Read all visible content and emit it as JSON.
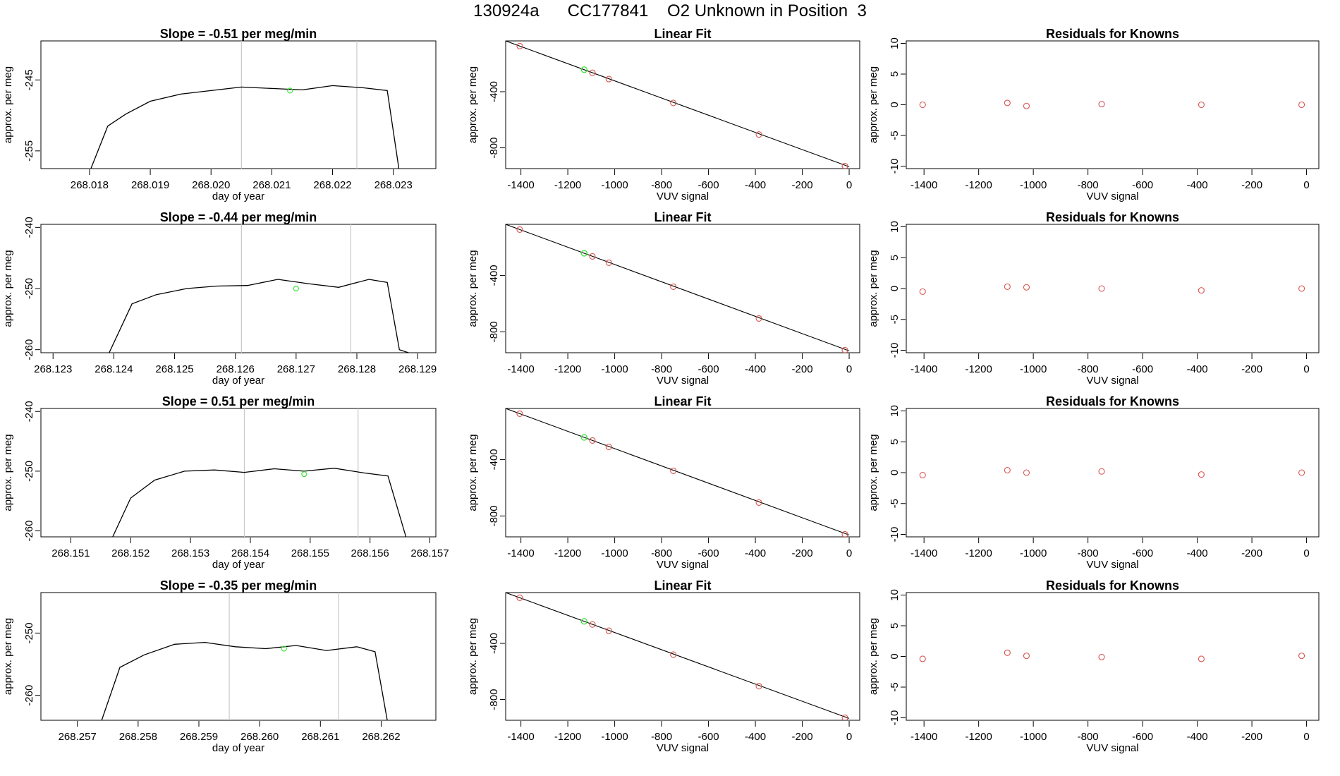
{
  "page": {
    "title": "130924a      CC177841    O2 Unknown in Position  3"
  },
  "chart_data": [
    {
      "type": "line",
      "panel": "time-series",
      "row": 1,
      "title": "Slope =  -0.51  per meg/min",
      "xlabel": "day of year",
      "ylabel": "approx. per meg",
      "xlim": [
        268.0172,
        268.0237
      ],
      "ylim": [
        -257.5,
        -239.5
      ],
      "xticks": [
        268.018,
        268.019,
        268.02,
        268.021,
        268.022,
        268.023
      ],
      "xtick_labels": [
        "268.018",
        "268.019",
        "268.020",
        "268.021",
        "268.022",
        "268.023"
      ],
      "yticks": [
        -245,
        -255
      ],
      "ytick_labels": [
        "-245",
        "-255"
      ],
      "vlines": [
        268.0205,
        268.0224
      ],
      "marker": {
        "x": 268.0213,
        "y": -246.5
      },
      "series": [
        {
          "name": "signal",
          "x": [
            268.018,
            268.0183,
            268.0186,
            268.019,
            268.0195,
            268.02,
            268.0205,
            268.021,
            268.0215,
            268.022,
            268.0225,
            268.0229,
            268.0231
          ],
          "y": [
            -258.0,
            -251.5,
            -249.8,
            -248.0,
            -247.0,
            -246.5,
            -246.0,
            -246.2,
            -246.4,
            -245.8,
            -246.1,
            -246.5,
            -258.0
          ]
        }
      ]
    },
    {
      "type": "line",
      "panel": "time-series",
      "row": 2,
      "title": "Slope =  -0.44  per meg/min",
      "xlabel": "day of year",
      "ylabel": "approx. per meg",
      "xlim": [
        268.1228,
        268.1293
      ],
      "ylim": [
        -260.5,
        -239.5
      ],
      "xticks": [
        268.123,
        268.124,
        268.125,
        268.126,
        268.127,
        268.128,
        268.129
      ],
      "xtick_labels": [
        "268.123",
        "268.124",
        "268.125",
        "268.126",
        "268.127",
        "268.128",
        "268.129"
      ],
      "yticks": [
        -240,
        -250,
        -260
      ],
      "ytick_labels": [
        "-240",
        "-250",
        "-260"
      ],
      "vlines": [
        268.1261,
        268.1279
      ],
      "marker": {
        "x": 268.127,
        "y": -250.0
      },
      "series": [
        {
          "name": "signal",
          "x": [
            268.1239,
            268.1243,
            268.1247,
            268.1252,
            268.1257,
            268.1262,
            268.1267,
            268.1272,
            268.1277,
            268.1282,
            268.1285,
            268.1287,
            268.129
          ],
          "y": [
            -261.0,
            -252.5,
            -251.0,
            -250.0,
            -249.6,
            -249.5,
            -248.5,
            -249.2,
            -249.8,
            -248.5,
            -249.0,
            -260.0,
            -261.0
          ]
        }
      ]
    },
    {
      "type": "line",
      "panel": "time-series",
      "row": 3,
      "title": "Slope =  0.51  per meg/min",
      "xlabel": "day of year",
      "ylabel": "approx. per meg",
      "xlim": [
        268.1505,
        268.1571
      ],
      "ylim": [
        -261.0,
        -239.5
      ],
      "xticks": [
        268.151,
        268.152,
        268.153,
        268.154,
        268.155,
        268.156,
        268.157
      ],
      "xtick_labels": [
        "268.151",
        "268.152",
        "268.153",
        "268.154",
        "268.155",
        "268.156",
        "268.157"
      ],
      "yticks": [
        -240,
        -250,
        -260
      ],
      "ytick_labels": [
        "-240",
        "-250",
        "-260"
      ],
      "vlines": [
        268.1539,
        268.1558
      ],
      "marker": {
        "x": 268.1549,
        "y": -250.5
      },
      "series": [
        {
          "name": "signal",
          "x": [
            268.1517,
            268.152,
            268.1524,
            268.1529,
            268.1534,
            268.1539,
            268.1544,
            268.1549,
            268.1554,
            268.1559,
            268.1563,
            268.1566
          ],
          "y": [
            -261.0,
            -254.5,
            -251.5,
            -250.0,
            -249.8,
            -250.2,
            -249.6,
            -250.0,
            -249.5,
            -250.3,
            -250.8,
            -261.0
          ]
        }
      ]
    },
    {
      "type": "line",
      "panel": "time-series",
      "row": 4,
      "title": "Slope =  -0.35  per meg/min",
      "xlabel": "day of year",
      "ylabel": "approx. per meg",
      "xlim": [
        268.2564,
        268.2629
      ],
      "ylim": [
        -264.0,
        -243.5
      ],
      "xticks": [
        268.257,
        268.258,
        268.259,
        268.26,
        268.261,
        268.262
      ],
      "xtick_labels": [
        "268.257",
        "268.258",
        "268.259",
        "268.260",
        "268.261",
        "268.262"
      ],
      "yticks": [
        -250,
        -260
      ],
      "ytick_labels": [
        "-250",
        "-260"
      ],
      "vlines": [
        268.2595,
        268.2613
      ],
      "marker": {
        "x": 268.2604,
        "y": -252.5
      },
      "series": [
        {
          "name": "signal",
          "x": [
            268.2574,
            268.2577,
            268.2581,
            268.2586,
            268.2591,
            268.2596,
            268.2601,
            268.2606,
            268.2611,
            268.2616,
            268.2619,
            268.2621
          ],
          "y": [
            -264.0,
            -255.5,
            -253.5,
            -251.8,
            -251.5,
            -252.2,
            -252.5,
            -252.0,
            -252.8,
            -252.2,
            -253.0,
            -264.0
          ]
        }
      ]
    },
    {
      "type": "scatter",
      "panel": "linear-fit",
      "row": 1,
      "title": "Linear Fit",
      "xlabel": "VUV signal",
      "ylabel": "approx. per meg",
      "xlim": [
        -1465,
        45
      ],
      "ylim": [
        -948,
        -38
      ],
      "xticks": [
        -1400,
        -1200,
        -1000,
        -800,
        -600,
        -400,
        -200,
        0
      ],
      "xtick_labels": [
        "-1400",
        "-1200",
        "-1000",
        "-800",
        "-600",
        "-400",
        "-200",
        "0"
      ],
      "yticks": [
        -400,
        -800
      ],
      "ytick_labels": [
        "-400",
        "-800"
      ],
      "fit_line": {
        "x": [
          -1465,
          0
        ],
        "y": [
          -38,
          -935
        ]
      },
      "points": {
        "x": [
          -1405,
          -1095,
          -1025,
          -750,
          -385,
          -18
        ],
        "y": [
          -75,
          -265,
          -310,
          -480,
          -705,
          -930
        ]
      },
      "unknown": {
        "x": [
          -1130
        ],
        "y": [
          -243
        ]
      }
    },
    {
      "type": "scatter",
      "panel": "linear-fit",
      "row": 2,
      "title": "Linear Fit",
      "xlabel": "VUV signal",
      "ylabel": "approx. per meg",
      "xlim": [
        -1465,
        45
      ],
      "ylim": [
        -948,
        -38
      ],
      "xticks": [
        -1400,
        -1200,
        -1000,
        -800,
        -600,
        -400,
        -200,
        0
      ],
      "xtick_labels": [
        "-1400",
        "-1200",
        "-1000",
        "-800",
        "-600",
        "-400",
        "-200",
        "0"
      ],
      "yticks": [
        -400,
        -800
      ],
      "ytick_labels": [
        "-400",
        "-800"
      ],
      "fit_line": {
        "x": [
          -1465,
          0
        ],
        "y": [
          -38,
          -935
        ]
      },
      "points": {
        "x": [
          -1405,
          -1095,
          -1025,
          -750,
          -385,
          -18
        ],
        "y": [
          -75,
          -265,
          -310,
          -480,
          -705,
          -930
        ]
      },
      "unknown": {
        "x": [
          -1130
        ],
        "y": [
          -243
        ]
      }
    },
    {
      "type": "scatter",
      "panel": "linear-fit",
      "row": 3,
      "title": "Linear Fit",
      "xlabel": "VUV signal",
      "ylabel": "approx. per meg",
      "xlim": [
        -1465,
        45
      ],
      "ylim": [
        -948,
        -38
      ],
      "xticks": [
        -1400,
        -1200,
        -1000,
        -800,
        -600,
        -400,
        -200,
        0
      ],
      "xtick_labels": [
        "-1400",
        "-1200",
        "-1000",
        "-800",
        "-600",
        "-400",
        "-200",
        "0"
      ],
      "yticks": [
        -400,
        -800
      ],
      "ytick_labels": [
        "-400",
        "-800"
      ],
      "fit_line": {
        "x": [
          -1465,
          0
        ],
        "y": [
          -38,
          -935
        ]
      },
      "points": {
        "x": [
          -1405,
          -1095,
          -1025,
          -750,
          -385,
          -18
        ],
        "y": [
          -75,
          -265,
          -310,
          -480,
          -705,
          -930
        ]
      },
      "unknown": {
        "x": [
          -1130
        ],
        "y": [
          -243
        ]
      }
    },
    {
      "type": "scatter",
      "panel": "linear-fit",
      "row": 4,
      "title": "Linear Fit",
      "xlabel": "VUV signal",
      "ylabel": "approx. per meg",
      "xlim": [
        -1465,
        45
      ],
      "ylim": [
        -948,
        -38
      ],
      "xticks": [
        -1400,
        -1200,
        -1000,
        -800,
        -600,
        -400,
        -200,
        0
      ],
      "xtick_labels": [
        "-1400",
        "-1200",
        "-1000",
        "-800",
        "-600",
        "-400",
        "-200",
        "0"
      ],
      "yticks": [
        -400,
        -800
      ],
      "ytick_labels": [
        "-400",
        "-800"
      ],
      "fit_line": {
        "x": [
          -1465,
          0
        ],
        "y": [
          -38,
          -935
        ]
      },
      "points": {
        "x": [
          -1405,
          -1095,
          -1025,
          -750,
          -385,
          -18
        ],
        "y": [
          -75,
          -265,
          -310,
          -480,
          -705,
          -930
        ]
      },
      "unknown": {
        "x": [
          -1130
        ],
        "y": [
          -243
        ]
      }
    },
    {
      "type": "scatter",
      "panel": "residuals",
      "row": 1,
      "title": "Residuals for Knowns",
      "xlabel": "VUV signal",
      "ylabel": "approx. per meg",
      "xlim": [
        -1465,
        45
      ],
      "ylim": [
        -10.4,
        10.4
      ],
      "xticks": [
        -1400,
        -1200,
        -1000,
        -800,
        -600,
        -400,
        -200,
        0
      ],
      "xtick_labels": [
        "-1400",
        "-1200",
        "-1000",
        "-800",
        "-600",
        "-400",
        "-200",
        "0"
      ],
      "yticks": [
        10,
        5,
        0,
        -5,
        -10
      ],
      "ytick_labels": [
        "10",
        "5",
        "0",
        "-5",
        "-10"
      ],
      "points": {
        "x": [
          -1405,
          -1095,
          -1025,
          -750,
          -385,
          -18
        ],
        "y": [
          0.0,
          0.3,
          -0.2,
          0.1,
          0.0,
          0.0
        ]
      }
    },
    {
      "type": "scatter",
      "panel": "residuals",
      "row": 2,
      "title": "Residuals for Knowns",
      "xlabel": "VUV signal",
      "ylabel": "approx. per meg",
      "xlim": [
        -1465,
        45
      ],
      "ylim": [
        -10.4,
        10.4
      ],
      "xticks": [
        -1400,
        -1200,
        -1000,
        -800,
        -600,
        -400,
        -200,
        0
      ],
      "xtick_labels": [
        "-1400",
        "-1200",
        "-1000",
        "-800",
        "-600",
        "-400",
        "-200",
        "0"
      ],
      "yticks": [
        10,
        5,
        0,
        -5,
        -10
      ],
      "ytick_labels": [
        "10",
        "5",
        "0",
        "-5",
        "-10"
      ],
      "points": {
        "x": [
          -1405,
          -1095,
          -1025,
          -750,
          -385,
          -18
        ],
        "y": [
          -0.5,
          0.3,
          0.2,
          0.0,
          -0.3,
          0.0
        ]
      }
    },
    {
      "type": "scatter",
      "panel": "residuals",
      "row": 3,
      "title": "Residuals for Knowns",
      "xlabel": "VUV signal",
      "ylabel": "approx. per meg",
      "xlim": [
        -1465,
        45
      ],
      "ylim": [
        -10.4,
        10.4
      ],
      "xticks": [
        -1400,
        -1200,
        -1000,
        -800,
        -600,
        -400,
        -200,
        0
      ],
      "xtick_labels": [
        "-1400",
        "-1200",
        "-1000",
        "-800",
        "-600",
        "-400",
        "-200",
        "0"
      ],
      "yticks": [
        10,
        5,
        0,
        -5,
        -10
      ],
      "ytick_labels": [
        "10",
        "5",
        "0",
        "-5",
        "-10"
      ],
      "points": {
        "x": [
          -1405,
          -1095,
          -1025,
          -750,
          -385,
          -18
        ],
        "y": [
          -0.4,
          0.4,
          0.0,
          0.2,
          -0.3,
          0.0
        ]
      }
    },
    {
      "type": "scatter",
      "panel": "residuals",
      "row": 4,
      "title": "Residuals for Knowns",
      "xlabel": "VUV signal",
      "ylabel": "approx. per meg",
      "xlim": [
        -1465,
        45
      ],
      "ylim": [
        -10.4,
        10.4
      ],
      "xticks": [
        -1400,
        -1200,
        -1000,
        -800,
        -600,
        -400,
        -200,
        0
      ],
      "xtick_labels": [
        "-1400",
        "-1200",
        "-1000",
        "-800",
        "-600",
        "-400",
        "-200",
        "0"
      ],
      "yticks": [
        10,
        5,
        0,
        -5,
        -10
      ],
      "ytick_labels": [
        "10",
        "5",
        "0",
        "-5",
        "-10"
      ],
      "points": {
        "x": [
          -1405,
          -1095,
          -1025,
          -750,
          -385,
          -18
        ],
        "y": [
          -0.4,
          0.6,
          0.1,
          -0.1,
          -0.4,
          0.1
        ]
      }
    }
  ],
  "colors": {
    "line": "#000000",
    "vline": "#c8c8c8",
    "unknown_marker": "#39e639",
    "residual_marker": "#d9534f",
    "fit_marker": "#d9534f",
    "axis": "#000000"
  }
}
